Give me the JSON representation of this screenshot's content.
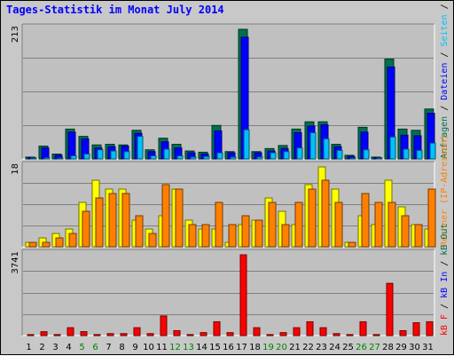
{
  "title": "Tages-Statistik im Monat July 2014",
  "colors": {
    "anfragen": "#007050",
    "dateien": "#0000ff",
    "seiten": "#00c0ff",
    "rechner": "#ff8000",
    "besuche": "#ffff00",
    "kbf": "#ff0000",
    "weekend": "#008000",
    "text": "#000000",
    "panel": "#c0c0c0"
  },
  "chart_data": [
    {
      "type": "bar",
      "panel": "top",
      "ymax_label": "213",
      "ylim": [
        0,
        213
      ],
      "categories": [
        "1",
        "2",
        "3",
        "4",
        "5",
        "6",
        "7",
        "8",
        "9",
        "10",
        "11",
        "12",
        "13",
        "14",
        "15",
        "16",
        "17",
        "18",
        "19",
        "20",
        "21",
        "22",
        "23",
        "24",
        "25",
        "26",
        "27",
        "28",
        "29",
        "30",
        "31"
      ],
      "weekend_days": [
        "5",
        "6",
        "12",
        "13",
        "19",
        "20",
        "26",
        "27"
      ],
      "legend_parts": [
        {
          "text": "Anfragen",
          "color_key": "anfragen"
        },
        {
          "text": " / ",
          "color_key": "text"
        },
        {
          "text": "Dateien",
          "color_key": "dateien"
        },
        {
          "text": " / ",
          "color_key": "text"
        },
        {
          "text": "Seiten",
          "color_key": "seiten"
        },
        {
          "text": " / ",
          "color_key": "text"
        },
        {
          "text": "Besuche",
          "color_key": "besuche"
        }
      ],
      "series": [
        {
          "name": "Anfragen",
          "color_key": "anfragen",
          "values": [
            3,
            21,
            8,
            49,
            37,
            23,
            24,
            23,
            47,
            15,
            34,
            24,
            13,
            11,
            55,
            12,
            213,
            12,
            17,
            22,
            49,
            61,
            61,
            24,
            6,
            52,
            3,
            164,
            49,
            47,
            82
          ]
        },
        {
          "name": "Dateien",
          "color_key": "dateien",
          "values": [
            2,
            18,
            6,
            44,
            33,
            18,
            20,
            21,
            42,
            12,
            28,
            18,
            10,
            8,
            46,
            10,
            200,
            10,
            13,
            17,
            43,
            54,
            56,
            20,
            4,
            44,
            2,
            151,
            39,
            38,
            75
          ]
        },
        {
          "name": "Seiten",
          "color_key": "seiten",
          "values": [
            1,
            2,
            1,
            5,
            8,
            15,
            13,
            12,
            37,
            5,
            16,
            5,
            3,
            4,
            10,
            3,
            48,
            3,
            10,
            12,
            18,
            43,
            33,
            14,
            1,
            15,
            1,
            36,
            16,
            14,
            26
          ]
        }
      ]
    },
    {
      "type": "bar",
      "panel": "middle",
      "ymax_label": "18",
      "ylim": [
        0,
        18
      ],
      "categories": [
        "1",
        "2",
        "3",
        "4",
        "5",
        "6",
        "7",
        "8",
        "9",
        "10",
        "11",
        "12",
        "13",
        "14",
        "15",
        "16",
        "17",
        "18",
        "19",
        "20",
        "21",
        "22",
        "23",
        "24",
        "25",
        "26",
        "27",
        "28",
        "29",
        "30",
        "31"
      ],
      "legend_parts": [
        {
          "text": "Rechner (IP-Adressen)",
          "color_key": "rechner"
        }
      ],
      "series": [
        {
          "name": "Besuche",
          "color_key": "besuche",
          "values": [
            1,
            2,
            3,
            4,
            10,
            15,
            13,
            13,
            6,
            4,
            7,
            13,
            6,
            4,
            4,
            1,
            5,
            6,
            11,
            8,
            5,
            14,
            18,
            13,
            1,
            7,
            5,
            15,
            9,
            5,
            4
          ]
        },
        {
          "name": "Rechner (IP-Adressen)",
          "color_key": "rechner",
          "values": [
            1,
            1,
            2,
            3,
            8,
            11,
            12,
            12,
            7,
            3,
            14,
            13,
            5,
            5,
            10,
            5,
            7,
            6,
            10,
            5,
            10,
            13,
            15,
            10,
            1,
            12,
            10,
            10,
            7,
            5,
            13
          ]
        }
      ]
    },
    {
      "type": "bar",
      "panel": "bottom",
      "ymax_label": "3741",
      "ylim": [
        0,
        3741
      ],
      "categories": [
        "1",
        "2",
        "3",
        "4",
        "5",
        "6",
        "7",
        "8",
        "9",
        "10",
        "11",
        "12",
        "13",
        "14",
        "15",
        "16",
        "17",
        "18",
        "19",
        "20",
        "21",
        "22",
        "23",
        "24",
        "25",
        "26",
        "27",
        "28",
        "29",
        "30",
        "31"
      ],
      "legend_parts": [
        {
          "text": "kB F",
          "color_key": "kbf"
        },
        {
          "text": " / ",
          "color_key": "text"
        },
        {
          "text": "kB In",
          "color_key": "dateien"
        },
        {
          "text": " / ",
          "color_key": "text"
        },
        {
          "text": "kB Out",
          "color_key": "anfragen"
        }
      ],
      "series": [
        {
          "name": "kB F",
          "color_key": "kbf",
          "values": [
            46,
            180,
            46,
            365,
            183,
            46,
            91,
            91,
            365,
            91,
            910,
            228,
            46,
            137,
            640,
            137,
            3741,
            365,
            46,
            137,
            365,
            640,
            365,
            91,
            46,
            640,
            46,
            2420,
            228,
            595,
            640
          ]
        }
      ]
    }
  ]
}
